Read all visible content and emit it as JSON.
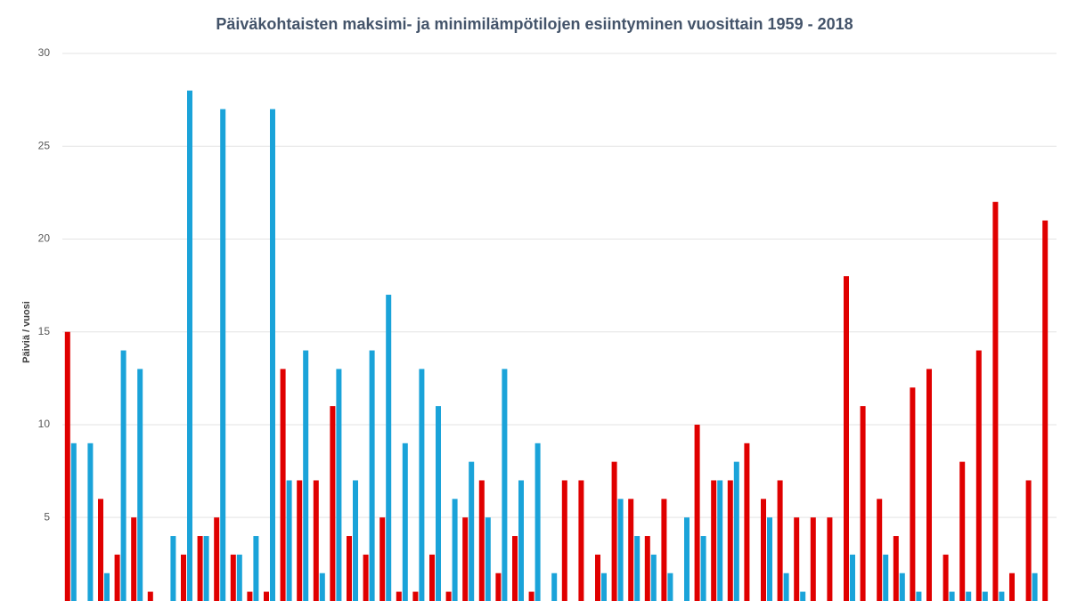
{
  "chart_data": {
    "type": "bar",
    "title": "Päiväkohtaisten maksimi- ja minimilämpötilojen esiintyminen vuosittain 1959 - 2018",
    "y_label": "Päiviä / vuosi",
    "series": [
      {
        "color": "#e00000",
        "values": [
          15,
          0,
          6,
          3,
          5,
          1,
          0,
          3,
          4,
          5,
          3,
          1,
          1,
          13,
          7,
          7,
          11,
          4,
          3,
          5,
          1,
          1,
          3,
          1,
          5,
          7,
          2,
          4,
          1,
          0,
          7,
          7,
          3,
          8,
          6,
          4,
          6,
          0,
          10,
          7,
          7,
          9,
          6,
          7,
          5,
          5,
          5,
          18,
          11,
          6,
          4,
          12,
          13,
          3,
          8,
          14,
          22,
          2,
          7,
          21
        ]
      },
      {
        "color": "#1aa3d9",
        "values": [
          9,
          9,
          2,
          14,
          13,
          0,
          4,
          28,
          4,
          27,
          3,
          4,
          27,
          7,
          14,
          2,
          13,
          7,
          14,
          17,
          9,
          13,
          11,
          6,
          8,
          5,
          13,
          7,
          9,
          2,
          0,
          0,
          2,
          6,
          4,
          3,
          2,
          5,
          4,
          7,
          8,
          0,
          5,
          2,
          1,
          0,
          0,
          3,
          0,
          3,
          2,
          1,
          0,
          1,
          1,
          1,
          1,
          0,
          2,
          0
        ]
      }
    ],
    "ylim": [
      0.5,
      30
    ],
    "yticks": [
      5,
      10,
      15,
      20,
      25,
      30
    ],
    "grid": true
  }
}
